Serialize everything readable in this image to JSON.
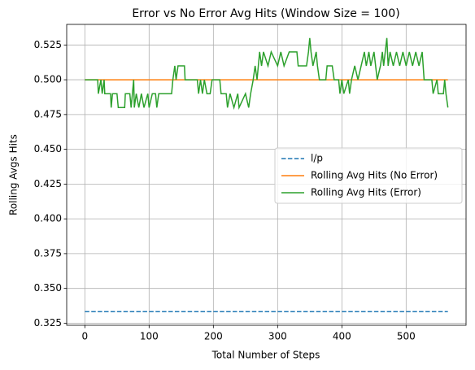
{
  "chart_data": {
    "type": "line",
    "title": "Error vs No Error Avg Hits (Window Size = 100)",
    "xlabel": "Total Number of Steps",
    "ylabel": "Rolling Avgs Hits",
    "xlim": [
      -28.25,
      593.25
    ],
    "xticks": [
      0,
      100,
      200,
      300,
      400,
      500
    ],
    "ylim": [
      0.3235,
      0.5398
    ],
    "yticks": [
      0.325,
      {
        "value": 0.35,
        "label": "0.350"
      },
      0.375,
      {
        "value": 0.4,
        "label": "0.400"
      },
      0.425,
      {
        "value": 0.45,
        "label": "0.450"
      },
      0.475,
      {
        "value": 0.5,
        "label": "0.500"
      },
      0.525
    ],
    "grid": true,
    "legend": "right",
    "series": [
      {
        "name": "l/p",
        "color": "#1f77b4",
        "linestyle": "dashed",
        "x": [
          0,
          565
        ],
        "values": [
          0.3333,
          0.3333
        ]
      },
      {
        "name": "Rolling Avg Hits (No Error)",
        "color": "#ff7f0e",
        "linestyle": "solid",
        "x": [
          0,
          565
        ],
        "values": [
          0.5,
          0.5
        ]
      },
      {
        "name": "Rolling Avg Hits (Error)",
        "color": "#2ca02c",
        "linestyle": "solid",
        "x": [
          0,
          20,
          21,
          25,
          27,
          30,
          31,
          40,
          41,
          43,
          50,
          52,
          62,
          63,
          70,
          72,
          74,
          76,
          77,
          80,
          84,
          88,
          92,
          98,
          100,
          105,
          110,
          112,
          115,
          120,
          135,
          137,
          140,
          142,
          145,
          155,
          156,
          175,
          177,
          180,
          183,
          186,
          190,
          195,
          198,
          210,
          212,
          220,
          222,
          226,
          232,
          238,
          240,
          250,
          255,
          258,
          262,
          265,
          268,
          270,
          272,
          275,
          278,
          285,
          290,
          300,
          305,
          310,
          318,
          330,
          332,
          345,
          348,
          350,
          352,
          355,
          360,
          362,
          365,
          375,
          377,
          385,
          388,
          395,
          397,
          400,
          403,
          410,
          412,
          415,
          420,
          425,
          430,
          435,
          438,
          442,
          445,
          450,
          455,
          460,
          463,
          465,
          470,
          472,
          475,
          480,
          485,
          490,
          495,
          500,
          505,
          510,
          515,
          520,
          525,
          528,
          540,
          542,
          548,
          550,
          558,
          560,
          562,
          565
        ],
        "values": [
          0.5,
          0.5,
          0.49,
          0.5,
          0.49,
          0.5,
          0.49,
          0.49,
          0.48,
          0.49,
          0.49,
          0.48,
          0.48,
          0.49,
          0.49,
          0.48,
          0.49,
          0.5,
          0.48,
          0.49,
          0.48,
          0.49,
          0.48,
          0.49,
          0.48,
          0.49,
          0.49,
          0.48,
          0.49,
          0.49,
          0.49,
          0.5,
          0.51,
          0.5,
          0.51,
          0.51,
          0.5,
          0.5,
          0.49,
          0.5,
          0.49,
          0.5,
          0.49,
          0.49,
          0.5,
          0.5,
          0.49,
          0.49,
          0.48,
          0.49,
          0.48,
          0.49,
          0.48,
          0.49,
          0.48,
          0.49,
          0.5,
          0.51,
          0.5,
          0.51,
          0.52,
          0.51,
          0.52,
          0.51,
          0.52,
          0.51,
          0.52,
          0.51,
          0.52,
          0.52,
          0.51,
          0.51,
          0.52,
          0.53,
          0.52,
          0.51,
          0.52,
          0.51,
          0.5,
          0.5,
          0.51,
          0.51,
          0.5,
          0.5,
          0.49,
          0.5,
          0.49,
          0.5,
          0.49,
          0.5,
          0.51,
          0.5,
          0.51,
          0.52,
          0.51,
          0.52,
          0.51,
          0.52,
          0.5,
          0.51,
          0.52,
          0.51,
          0.53,
          0.51,
          0.52,
          0.51,
          0.52,
          0.51,
          0.52,
          0.51,
          0.52,
          0.51,
          0.52,
          0.51,
          0.52,
          0.5,
          0.5,
          0.49,
          0.5,
          0.49,
          0.49,
          0.5,
          0.49,
          0.48
        ]
      }
    ]
  }
}
